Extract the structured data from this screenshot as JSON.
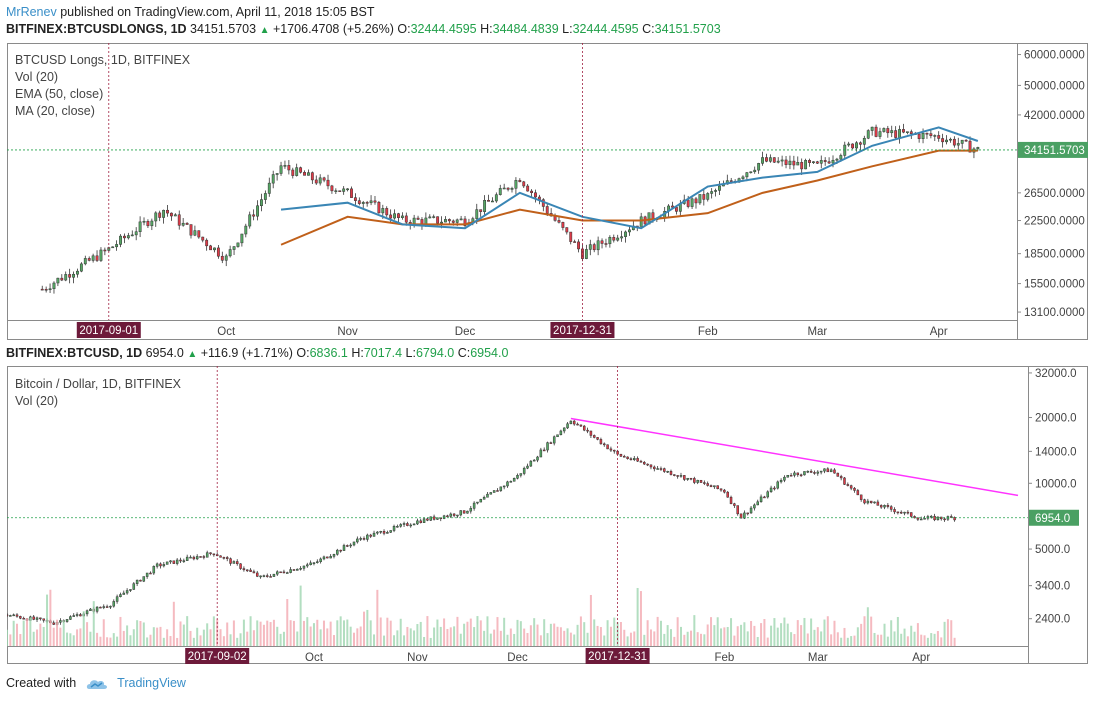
{
  "header": {
    "author": "MrRenev",
    "published": "published on TradingView.com, April 11, 2018 15:05 BST"
  },
  "top": {
    "symbol": "BITFINEX:BTCUSDLONGS, 1D",
    "last": "34151.5703",
    "change": "+1706.4708 (+5.26%)",
    "o_label": "O:",
    "o": "32444.4595",
    "h_label": "H:",
    "h": "34484.4839",
    "l_label": "L:",
    "l": "32444.4595",
    "c_label": "C:",
    "c": "34151.5703",
    "legend": [
      "BTCUSD Longs, 1D, BITFINEX",
      "Vol (20)",
      "EMA (50, close)",
      "MA (20, close)"
    ],
    "price_label": "34151.5703",
    "date_markers": [
      "2017-09-01",
      "2017-12-31"
    ],
    "month_labels": [
      "Oct",
      "Nov",
      "Dec",
      "Feb",
      "Mar",
      "Apr"
    ],
    "axis_labels": [
      "60000.0000",
      "50000.0000",
      "42000.0000",
      "26500.0000",
      "22500.0000",
      "18500.0000",
      "15500.0000",
      "13100.0000"
    ]
  },
  "bottom": {
    "symbol": "BITFINEX:BTCUSD, 1D",
    "last": "6954.0",
    "change": "+116.9 (+1.71%)",
    "o_label": "O:",
    "o": "6836.1",
    "h_label": "H:",
    "h": "7017.4",
    "l_label": "L:",
    "l": "6794.0",
    "c_label": "C:",
    "c": "6954.0",
    "legend": [
      "Bitcoin / Dollar, 1D, BITFINEX",
      "Vol (20)"
    ],
    "price_label": "6954.0",
    "date_markers": [
      "2017-09-02",
      "2017-12-31"
    ],
    "month_labels": [
      "Oct",
      "Nov",
      "Dec",
      "Feb",
      "Mar",
      "Apr"
    ],
    "axis_labels": [
      "32000.0",
      "20000.0",
      "14000.0",
      "10000.0",
      "5000.0",
      "3400.0",
      "2400.0"
    ]
  },
  "footer": {
    "created": "Created with",
    "brand": "TradingView"
  },
  "colors": {
    "up": "#55a664",
    "down": "#dd3b48",
    "ema": "#c0601a",
    "ma": "#3a86b5",
    "trendline": "#ff33ff",
    "marker": "#6d1a3a",
    "grid_price": "#21a04a"
  },
  "chart_data": [
    {
      "type": "line",
      "title": "BTCUSD Longs, 1D, BITFINEX",
      "scale": "log",
      "ylim": [
        12500,
        62000
      ],
      "x": [
        "2017-08-15",
        "2017-09-01",
        "2017-09-15",
        "2017-10-01",
        "2017-10-15",
        "2017-11-01",
        "2017-11-15",
        "2017-12-01",
        "2017-12-15",
        "2017-12-31",
        "2018-01-15",
        "2018-02-01",
        "2018-02-15",
        "2018-03-01",
        "2018-03-15",
        "2018-04-01",
        "2018-04-11"
      ],
      "series": [
        {
          "name": "BTCUSD Longs",
          "values": [
            15000,
            19000,
            24000,
            18000,
            31000,
            26500,
            22500,
            22500,
            29000,
            18500,
            22500,
            26000,
            32000,
            31000,
            38000,
            37000,
            34151.57
          ]
        },
        {
          "name": "EMA (50, close)",
          "values": [
            null,
            null,
            null,
            null,
            19500,
            23000,
            22000,
            22000,
            24000,
            22500,
            22500,
            23500,
            26500,
            28500,
            31000,
            34000,
            34000
          ]
        },
        {
          "name": "MA (20, close)",
          "values": [
            null,
            null,
            null,
            null,
            24000,
            25000,
            22000,
            21500,
            26500,
            23000,
            21500,
            27500,
            29000,
            30000,
            35000,
            39000,
            36000
          ]
        }
      ],
      "last_value": 34151.5703
    },
    {
      "type": "line",
      "title": "Bitcoin / Dollar, 1D, BITFINEX",
      "scale": "log",
      "ylim": [
        1800,
        33000
      ],
      "x": [
        "2017-07-01",
        "2017-07-15",
        "2017-08-01",
        "2017-08-15",
        "2017-09-01",
        "2017-09-15",
        "2017-10-01",
        "2017-10-15",
        "2017-11-01",
        "2017-11-15",
        "2017-12-01",
        "2017-12-17",
        "2017-12-31",
        "2018-01-15",
        "2018-02-01",
        "2018-02-06",
        "2018-02-20",
        "2018-03-05",
        "2018-03-15",
        "2018-04-01",
        "2018-04-11"
      ],
      "series": [
        {
          "name": "Bitcoin / Dollar",
          "values": [
            2500,
            2300,
            2800,
            4200,
            4800,
            3700,
            4300,
            5600,
            6700,
            7400,
            10800,
            19500,
            13500,
            11300,
            9200,
            7000,
            11000,
            11500,
            8300,
            6900,
            6954
          ]
        }
      ],
      "trendline": {
        "from": [
          "2017-12-17",
          19800
        ],
        "to": [
          "2018-04-30",
          8800
        ]
      },
      "last_value": 6954.0
    }
  ]
}
